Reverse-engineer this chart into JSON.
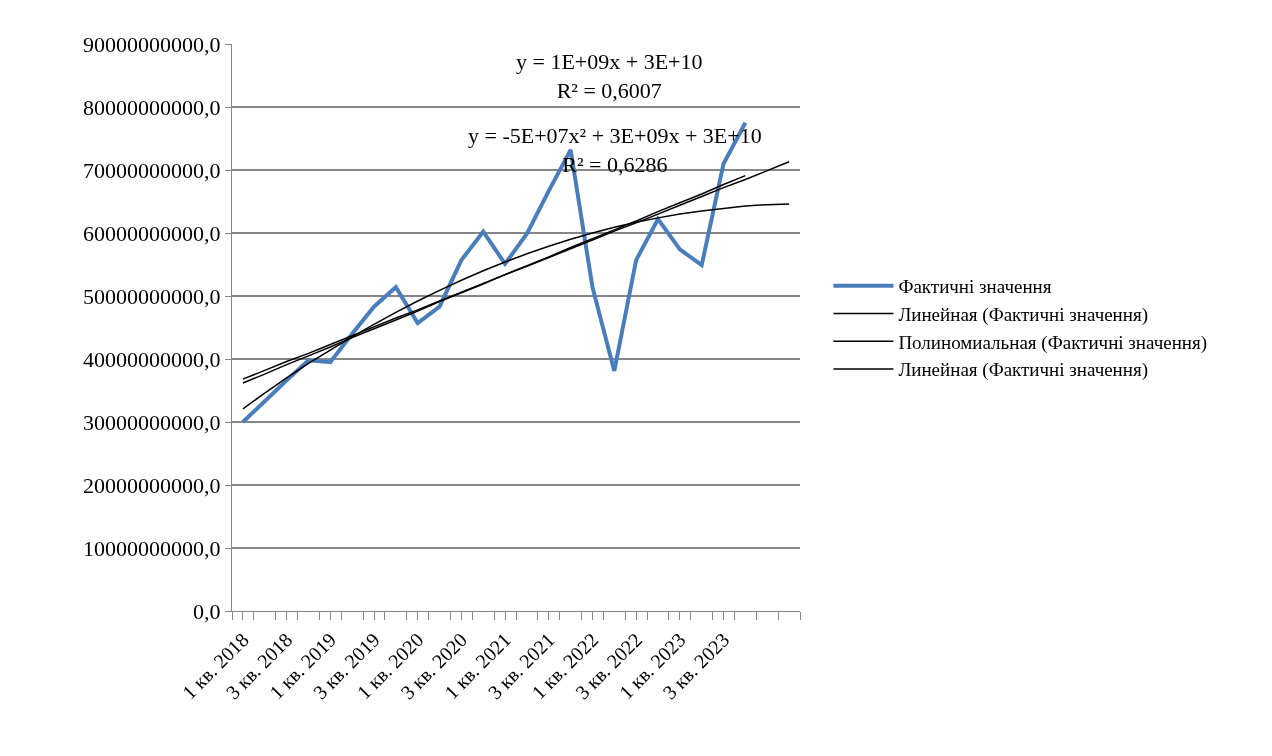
{
  "chart_data": {
    "type": "line",
    "categories": [
      "1 кв. 2018",
      null,
      "3 кв. 2018",
      null,
      "1 кв. 2019",
      null,
      "3 кв. 2019",
      null,
      "1 кв. 2020",
      null,
      "3 кв. 2020",
      null,
      "1 кв. 2021",
      null,
      "3 кв. 2021",
      null,
      "1 кв. 2022",
      null,
      "3 кв. 2022",
      null,
      "1 кв. 2023",
      null,
      "3 кв. 2023",
      null,
      null,
      null
    ],
    "series": [
      {
        "name": "Фактичні значення",
        "color": "#4a7ebb",
        "values": [
          30000000000,
          33300000000,
          36600000000,
          39800000000,
          39500000000,
          44000000000,
          48300000000,
          51400000000,
          45700000000,
          48300000000,
          55700000000,
          60200000000,
          55100000000,
          59900000000,
          66700000000,
          73200000000,
          51400000000,
          38100000000,
          55700000000,
          62200000000,
          57400000000,
          54900000000,
          71000000000,
          77500000000,
          null,
          null
        ]
      },
      {
        "name": "Линейная (Фактичні значення)",
        "color": "#000000",
        "values": [
          36800000000,
          38200000000,
          39600000000,
          40900000000,
          42300000000,
          43700000000,
          45100000000,
          46500000000,
          47800000000,
          49200000000,
          50600000000,
          52000000000,
          53400000000,
          54700000000,
          56100000000,
          57500000000,
          58900000000,
          60300000000,
          61600000000,
          63000000000,
          64400000000,
          65800000000,
          67200000000,
          68500000000,
          69900000000,
          71300000000
        ]
      },
      {
        "name": "Полиномиальная (Фактичні значення)",
        "color": "#000000",
        "values": [
          32100000000,
          34600000000,
          37000000000,
          39300000000,
          41400000000,
          43500000000,
          45500000000,
          47400000000,
          49200000000,
          50900000000,
          52500000000,
          54000000000,
          55400000000,
          56700000000,
          57900000000,
          59000000000,
          60000000000,
          60900000000,
          61700000000,
          62400000000,
          63000000000,
          63500000000,
          63900000000,
          64300000000,
          64500000000,
          64600000000
        ]
      },
      {
        "name": "Линейная (Фактичні значення)",
        "color": "#000000",
        "values": [
          36200000000,
          37600000000,
          39100000000,
          40500000000,
          41900000000,
          43400000000,
          44800000000,
          46200000000,
          47600000000,
          49100000000,
          50500000000,
          51900000000,
          53400000000,
          54800000000,
          56200000000,
          57700000000,
          59100000000,
          60500000000,
          61900000000,
          63400000000,
          64800000000,
          66200000000,
          67700000000,
          69100000000,
          null,
          null
        ]
      }
    ],
    "ylim": [
      0,
      90000000000
    ],
    "yticks": [
      {
        "value": 0,
        "label": "0,0"
      },
      {
        "value": 10000000000,
        "label": "10000000000,0"
      },
      {
        "value": 20000000000,
        "label": "20000000000,0"
      },
      {
        "value": 30000000000,
        "label": "30000000000,0"
      },
      {
        "value": 40000000000,
        "label": "40000000000,0"
      },
      {
        "value": 50000000000,
        "label": "50000000000,0"
      },
      {
        "value": 60000000000,
        "label": "60000000000,0"
      },
      {
        "value": 70000000000,
        "label": "70000000000,0"
      },
      {
        "value": 80000000000,
        "label": "80000000000,0"
      },
      {
        "value": 90000000000,
        "label": "90000000000,0"
      }
    ],
    "annotations": [
      "y = 1E+09x + 3E+10\nR² = 0,6007",
      "y = -5E+07x² + 3E+09x + 3E+10\nR² = 0,6286"
    ],
    "grid": "y",
    "legend": "right",
    "marker": "none",
    "line_style": "solid"
  }
}
